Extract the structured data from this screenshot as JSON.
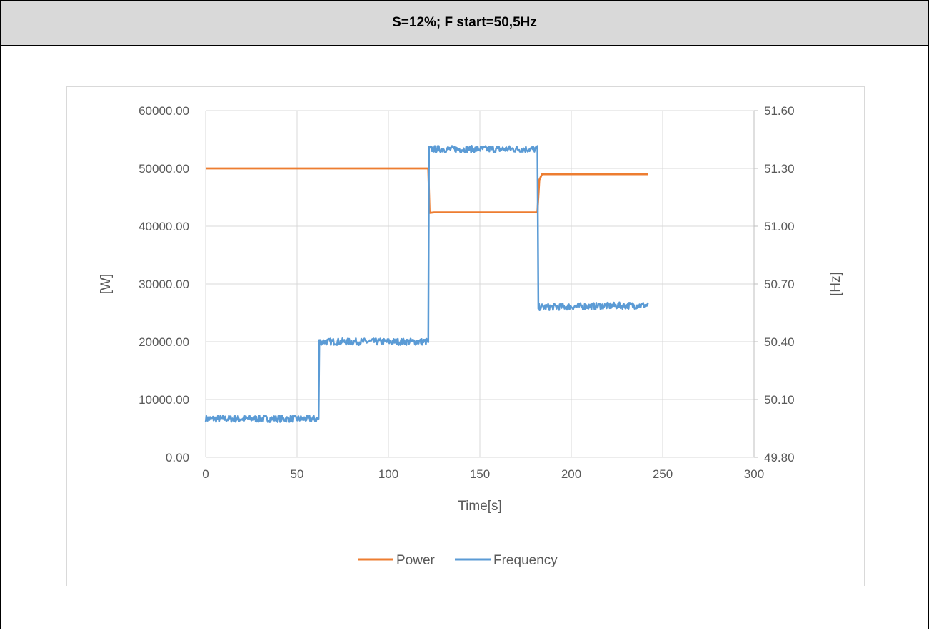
{
  "header": {
    "title": "S=12%; F start=50,5Hz"
  },
  "chart_data": {
    "type": "line",
    "xlabel": "Time[s]",
    "ylabel": "[W]",
    "y2label": "[Hz]",
    "xlim": [
      0,
      300
    ],
    "ylim": [
      0,
      60000
    ],
    "y2lim": [
      49.8,
      51.6
    ],
    "xticks": [
      "0",
      "50",
      "100",
      "150",
      "200",
      "250",
      "300"
    ],
    "yticks": [
      "0.00",
      "10000.00",
      "20000.00",
      "30000.00",
      "40000.00",
      "50000.00",
      "60000.00"
    ],
    "y2ticks": [
      "49.80",
      "50.10",
      "50.40",
      "50.70",
      "51.00",
      "51.30",
      "51.60"
    ],
    "grid": true,
    "legend_position": "bottom",
    "series": [
      {
        "name": "Power",
        "axis": "left",
        "color": "#ed7d31",
        "x": [
          0,
          121.8,
          122.5,
          125,
          181.5,
          182.5,
          184,
          242
        ],
        "values": [
          50000,
          50000,
          42300,
          42400,
          42400,
          48000,
          49000,
          49000
        ]
      },
      {
        "name": "Frequency",
        "axis": "right",
        "color": "#5b9bd5",
        "x": [
          0,
          61.8,
          62.2,
          121.8,
          122.2,
          181.5,
          182,
          242
        ],
        "values": [
          50.0,
          50.0,
          50.4,
          50.4,
          51.4,
          51.4,
          50.58,
          50.59
        ]
      }
    ]
  }
}
